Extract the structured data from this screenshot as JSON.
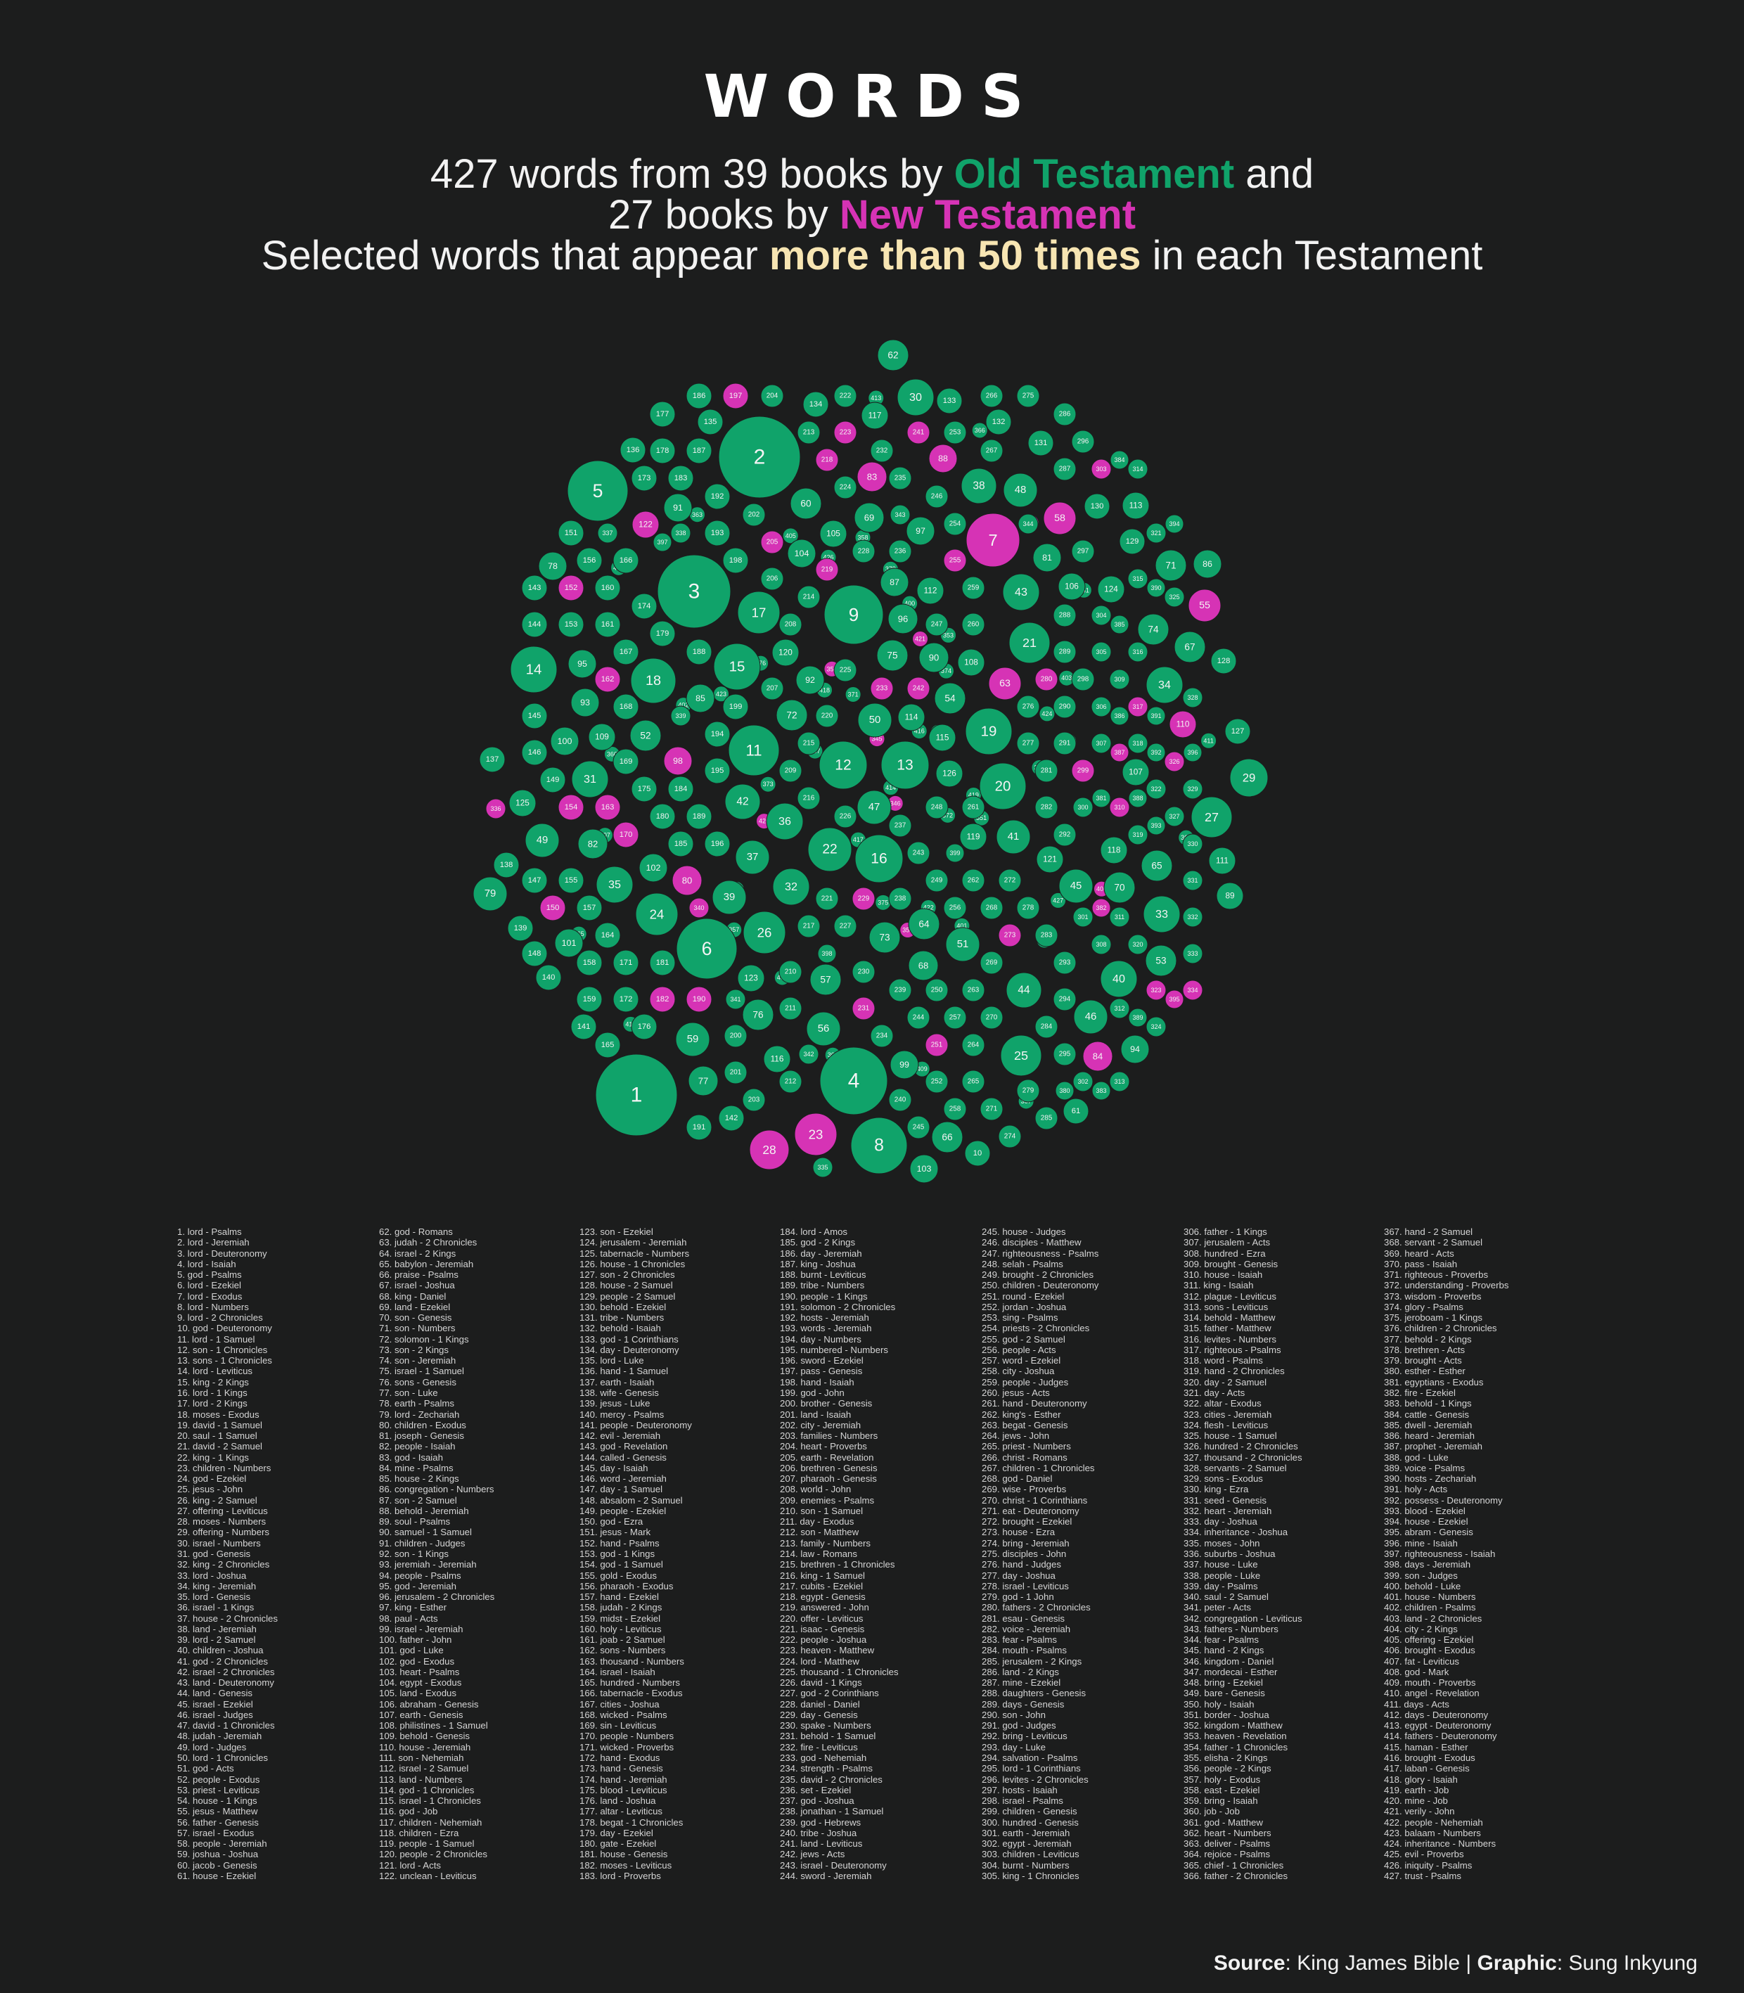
{
  "header": {
    "title": "WORDS",
    "line1_pre": "427 words from 39 books by ",
    "line1_ot": "Old Testament",
    "line1_post": " and",
    "line2_pre": "27 books by ",
    "line2_nt": "New Testament",
    "line3_pre": "Selected words that appear ",
    "line3_hl": "more than 50 times",
    "line3_post": " in each Testament"
  },
  "colors": {
    "background": "#1c1d1d",
    "old_testament": "#10a36a",
    "new_testament": "#d633b5",
    "highlight": "#f7e5b2"
  },
  "footer": {
    "source_label": "Source",
    "source_text": ": King  James Bible | ",
    "graphic_label": "Graphic",
    "graphic_text": ": Sung Inkyung"
  },
  "chart_data": {
    "type": "packed-bubble",
    "series": [
      {
        "name": "Old Testament",
        "color": "#10a36a"
      },
      {
        "name": "New Testament",
        "color": "#d633b5"
      }
    ],
    "nt_ranks": [
      7,
      23,
      28,
      55,
      58,
      63,
      80,
      83,
      84,
      88,
      98,
      110,
      122,
      150,
      152,
      154,
      162,
      163,
      170,
      182,
      190,
      197,
      205,
      218,
      219,
      223,
      229,
      231,
      233,
      241,
      242,
      251,
      255,
      273,
      280,
      299,
      303,
      310,
      317,
      323,
      326,
      334,
      336,
      340,
      345,
      346,
      350,
      354,
      382,
      387,
      395,
      406,
      408,
      420,
      421
    ],
    "items": [
      "lord - Psalms",
      "lord - Jeremiah",
      "lord - Deuteronomy",
      "lord - Isaiah",
      "god - Psalms",
      "lord - Ezekiel",
      "lord - Exodus",
      "lord - Numbers",
      "lord - 2 Chronicles",
      "god - Deuteronomy",
      "lord - 1 Samuel",
      "son - 1 Chronicles",
      "sons - 1 Chronicles",
      "lord - Leviticus",
      "king - 2 Kings",
      "lord - 1 Kings",
      "lord - 2 Kings",
      "moses - Exodus",
      "david - 1 Samuel",
      "saul - 1 Samuel",
      "david - 2 Samuel",
      "king - 1 Kings",
      "children - Numbers",
      "god - Ezekiel",
      "jesus - John",
      "king - 2 Samuel",
      "offering - Leviticus",
      "moses - Numbers",
      "offering - Numbers",
      "israel - Numbers",
      "god - Genesis",
      "king - 2 Chronicles",
      "lord - Joshua",
      "king - Jeremiah",
      "lord - Genesis",
      "israel - 1 Kings",
      "house - 2 Chronicles",
      "land - Jeremiah",
      "lord - 2 Samuel",
      "children - Joshua",
      "god - 2 Chronicles",
      "israel - 2 Chronicles",
      "land - Deuteronomy",
      "land - Genesis",
      "israel - Ezekiel",
      "israel - Judges",
      "david - 1 Chronicles",
      "judah - Jeremiah",
      "lord - Judges",
      "lord - 1 Chronicles",
      "god - Acts",
      "people - Exodus",
      "priest - Leviticus",
      "house - 1 Kings",
      "jesus - Matthew",
      "father - Genesis",
      "israel - Exodus",
      "people - Jeremiah",
      "joshua - Joshua",
      "jacob - Genesis",
      "house - Ezekiel",
      "god - Romans",
      "judah - 2 Chronicles",
      "israel - 2 Kings",
      "babylon - Jeremiah",
      "praise - Psalms",
      "israel - Joshua",
      "king - Daniel",
      "land - Ezekiel",
      "son - Genesis",
      "son - Numbers",
      "solomon - 1 Kings",
      "son - 2 Kings",
      "son - Jeremiah",
      "israel - 1 Samuel",
      "sons - Genesis",
      "son - Luke",
      "earth - Psalms",
      "lord - Zechariah",
      "children - Exodus",
      "joseph - Genesis",
      "people - Isaiah",
      "god - Isaiah",
      "mine - Psalms",
      "house - 2 Kings",
      "congregation - Numbers",
      "son - 2 Samuel",
      "behold - Jeremiah",
      "soul - Psalms",
      "samuel - 1 Samuel",
      "children - Judges",
      "son - 1 Kings",
      "jeremiah - Jeremiah",
      "people - Psalms",
      "god - Jeremiah",
      "jerusalem - 2 Chronicles",
      "king - Esther",
      "paul - Acts",
      "israel - Jeremiah",
      "father - John",
      "god - Luke",
      "god - Exodus",
      "heart - Psalms",
      "egypt - Exodus",
      "land - Exodus",
      "abraham - Genesis",
      "earth - Genesis",
      "philistines - 1 Samuel",
      "behold - Genesis",
      "house - Jeremiah",
      "son - Nehemiah",
      "israel - 2 Samuel",
      "land - Numbers",
      "god - 1 Chronicles",
      "israel - 1 Chronicles",
      "god - Job",
      "children - Nehemiah",
      "children - Ezra",
      "people - 1 Samuel",
      "people - 2 Chronicles",
      "lord - Acts",
      "unclean - Leviticus",
      "son - Ezekiel",
      "jerusalem - Jeremiah",
      "tabernacle - Numbers",
      "house - 1 Chronicles",
      "son - 2 Chronicles",
      "house - 2 Samuel",
      "people - 2 Samuel",
      "behold - Ezekiel",
      "tribe - Numbers",
      "behold - Isaiah",
      "god - 1 Corinthians",
      "day - Deuteronomy",
      "lord - Luke",
      "hand - 1 Samuel",
      "earth - Isaiah",
      "wife - Genesis",
      "jesus - Luke",
      "mercy - Psalms",
      "people - Deuteronomy",
      "evil - Jeremiah",
      "god - Revelation",
      "called - Genesis",
      "day - Isaiah",
      "word - Jeremiah",
      "day - 1 Samuel",
      "absalom - 2 Samuel",
      "people - Ezekiel",
      "god - Ezra",
      "jesus - Mark",
      "hand - Psalms",
      "god - 1 Kings",
      "god - 1 Samuel",
      "gold - Exodus",
      "pharaoh - Exodus",
      "hand - Ezekiel",
      "judah - 2 Kings",
      "midst - Ezekiel",
      "holy - Leviticus",
      "joab - 2 Samuel",
      "sons - Numbers",
      "thousand - Numbers",
      "israel - Isaiah",
      "hundred - Numbers",
      "tabernacle - Exodus",
      "cities - Joshua",
      "wicked - Psalms",
      "sin - Leviticus",
      "people - Numbers",
      "wicked - Proverbs",
      "hand - Exodus",
      "hand - Genesis",
      "hand - Jeremiah",
      "blood - Leviticus",
      "land - Joshua",
      "altar - Leviticus",
      "begat - 1 Chronicles",
      "day - Ezekiel",
      "gate - Ezekiel",
      "house - Genesis",
      "moses - Leviticus",
      "lord - Proverbs",
      "lord - Amos",
      "god - 2 Kings",
      "day - Jeremiah",
      "king - Joshua",
      "burnt - Leviticus",
      "tribe - Numbers",
      "people - 1 Kings",
      "solomon - 2 Chronicles",
      "hosts - Jeremiah",
      "words - Jeremiah",
      "day - Numbers",
      "numbered - Numbers",
      "sword - Ezekiel",
      "pass - Genesis",
      "hand - Isaiah",
      "god - John",
      "brother - Genesis",
      "land - Isaiah",
      "city - Jeremiah",
      "families - Numbers",
      "heart - Proverbs",
      "earth - Revelation",
      "brethren - Genesis",
      "pharaoh - Genesis",
      "world - John",
      "enemies - Psalms",
      "son - 1 Samuel",
      "day - Exodus",
      "son - Matthew",
      "family - Numbers",
      "law - Romans",
      "brethren - 1 Chronicles",
      "king - 1 Samuel",
      "cubits - Ezekiel",
      "egypt - Genesis",
      "answered - John",
      "offer - Leviticus",
      "isaac - Genesis",
      "people - Joshua",
      "heaven - Matthew",
      "lord - Matthew",
      "thousand - 1 Chronicles",
      "david - 1 Kings",
      "god - 2 Corinthians",
      "daniel - Daniel",
      "day - Genesis",
      "spake - Numbers",
      "behold - 1 Samuel",
      "fire - Leviticus",
      "god - Nehemiah",
      "strength - Psalms",
      "david - 2 Chronicles",
      "set - Ezekiel",
      "god - Joshua",
      "jonathan - 1 Samuel",
      "god - Hebrews",
      "tribe - Joshua",
      "land - Leviticus",
      "jews - Acts",
      "israel - Deuteronomy",
      "sword - Jeremiah",
      "house - Judges",
      "disciples - Matthew",
      "righteousness - Psalms",
      "selah - Psalms",
      "brought - 2 Chronicles",
      "children - Deuteronomy",
      "round - Ezekiel",
      "jordan - Joshua",
      "sing - Psalms",
      "priests - 2 Chronicles",
      "god - 2 Samuel",
      "people - Acts",
      "word - Ezekiel",
      "city - Joshua",
      "people - Judges",
      "jesus - Acts",
      "hand - Deuteronomy",
      "king's - Esther",
      "begat - Genesis",
      "jews - John",
      "priest - Numbers",
      "christ - Romans",
      "children - 1 Chronicles",
      "god - Daniel",
      "wise - Proverbs",
      "christ - 1 Corinthians",
      "eat - Deuteronomy",
      "brought - Ezekiel",
      "house - Ezra",
      "bring - Jeremiah",
      "disciples - John",
      "hand - Judges",
      "day - Joshua",
      "israel - Leviticus",
      "god - 1 John",
      "fathers - 2 Chronicles",
      "esau - Genesis",
      "voice - Jeremiah",
      "fear - Psalms",
      "mouth - Psalms",
      "jerusalem - 2 Kings",
      "land - 2 Kings",
      "mine - Ezekiel",
      "daughters - Genesis",
      "days - Genesis",
      "son - John",
      "god - Judges",
      "bring - Leviticus",
      "day - Luke",
      "salvation - Psalms",
      "lord - 1 Corinthians",
      "levites - 2 Chronicles",
      "hosts - Isaiah",
      "israel - Psalms",
      "children - Genesis",
      "hundred - Genesis",
      "earth - Jeremiah",
      "egypt - Jeremiah",
      "children - Leviticus",
      "burnt - Numbers",
      "king - 1 Chronicles",
      "father - 1 Kings",
      "jerusalem - Acts",
      "hundred - Ezra",
      "brought - Genesis",
      "house - Isaiah",
      "king - Isaiah",
      "plague - Leviticus",
      "sons - Leviticus",
      "behold - Matthew",
      "father - Matthew",
      "levites - Numbers",
      "righteous - Psalms",
      "word - Psalms",
      "hand - 2 Chronicles",
      "day - 2 Samuel",
      "day - Acts",
      "altar - Exodus",
      "cities - Jeremiah",
      "flesh - Leviticus",
      "house - 1 Samuel",
      "hundred - 2 Chronicles",
      "thousand - 2 Chronicles",
      "servants - 2 Samuel",
      "sons - Exodus",
      "king - Ezra",
      "seed - Genesis",
      "heart - Jeremiah",
      "day - Joshua",
      "inheritance - Joshua",
      "moses - John",
      "suburbs - Joshua",
      "house - Luke",
      "people - Luke",
      "day - Psalms",
      "saul - 2 Samuel",
      "peter - Acts",
      "congregation - Leviticus",
      "fathers - Numbers",
      "fear - Psalms",
      "hand - 2 Kings",
      "kingdom - Daniel",
      "mordecai - Esther",
      "bring - Ezekiel",
      "bare - Genesis",
      "holy - Isaiah",
      "border - Joshua",
      "kingdom - Matthew",
      "heaven - Revelation",
      "father - 1 Chronicles",
      "elisha - 2 Kings",
      "people - 2 Kings",
      "holy - Exodus",
      "east - Ezekiel",
      "bring - Isaiah",
      "job - Job",
      "god - Matthew",
      "heart - Numbers",
      "deliver - Psalms",
      "rejoice - Psalms",
      "chief - 1 Chronicles",
      "father - 2 Chronicles",
      "hand - 2 Samuel",
      "servant - 2 Samuel",
      "heard - Acts",
      "pass - Isaiah",
      "righteous - Proverbs",
      "understanding - Proverbs",
      "wisdom - Proverbs",
      "glory - Psalms",
      "jeroboam - 1 Kings",
      "children - 2 Chronicles",
      "behold - 2 Kings",
      "brethren - Acts",
      "brought - Acts",
      "esther - Esther",
      "egyptians - Exodus",
      "fire - Ezekiel",
      "behold - 1 Kings",
      "cattle - Genesis",
      "dwell - Jeremiah",
      "heard - Jeremiah",
      "prophet - Jeremiah",
      "god - Luke",
      "voice - Psalms",
      "hosts - Zechariah",
      "holy - Acts",
      "possess - Deuteronomy",
      "blood - Ezekiel",
      "house - Ezekiel",
      "abram - Genesis",
      "mine - Isaiah",
      "righteousness - Isaiah",
      "days - Jeremiah",
      "son - Judges",
      "behold - Luke",
      "house - Numbers",
      "children - Psalms",
      "land - 2 Chronicles",
      "city - 2 Kings",
      "offering - Ezekiel",
      "brought - Exodus",
      "fat - Leviticus",
      "god - Mark",
      "mouth - Proverbs",
      "angel - Revelation",
      "days - Acts",
      "days - Deuteronomy",
      "egypt - Deuteronomy",
      "fathers - Deuteronomy",
      "haman - Esther",
      "brought - Exodus",
      "laban - Genesis",
      "glory - Isaiah",
      "earth - Job",
      "mine - Job",
      "verily - John",
      "people - Nehemiah",
      "balaam - Numbers",
      "inheritance - Numbers",
      "evil - Proverbs",
      "iniquity - Psalms",
      "trust - Psalms"
    ]
  }
}
